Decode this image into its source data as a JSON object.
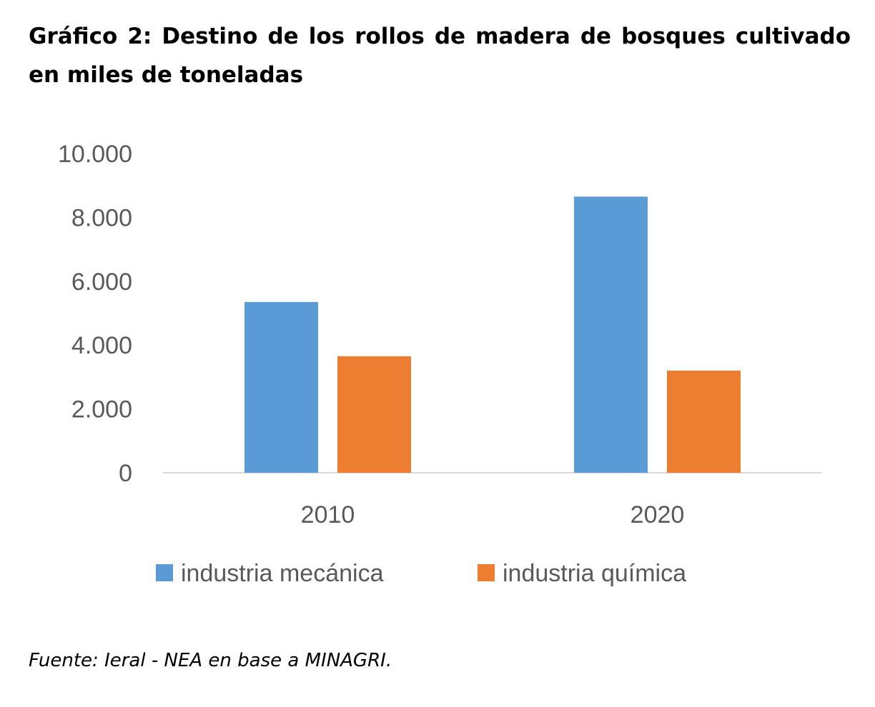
{
  "title": "Gráfico 2: Destino de los rollos de madera de bosques cultivado en miles de toneladas",
  "source": "Fuente: Ieral - NEA en base a MINAGRI.",
  "chart_data": {
    "type": "bar",
    "categories": [
      "2010",
      "2020"
    ],
    "series": [
      {
        "name": "industria mecánica",
        "color": "#5B9BD5",
        "values": [
          5350,
          8650
        ]
      },
      {
        "name": "industria química",
        "color": "#ED7D31",
        "values": [
          3650,
          3200
        ]
      }
    ],
    "ylim": [
      0,
      10000
    ],
    "yticks": [
      0,
      2000,
      4000,
      6000,
      8000,
      10000
    ],
    "ytick_labels": [
      "0",
      "2.000",
      "4.000",
      "6.000",
      "8.000",
      "10.000"
    ],
    "grid": false,
    "legend": "bottom"
  }
}
